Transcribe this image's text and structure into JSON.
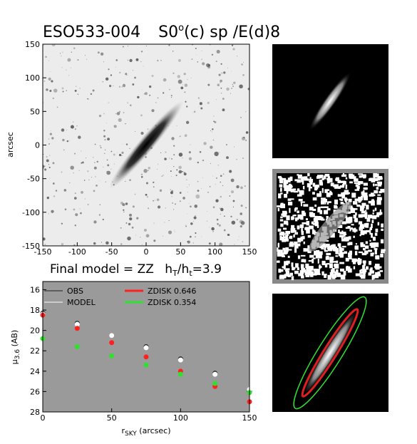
{
  "chart_data": [
    {
      "type": "image",
      "title": {
        "galaxy": "ESO533-004",
        "class": "S0",
        "class_sup": "o",
        "class_rest": "(c) sp  /E(d)8"
      },
      "y_label": "arcsec",
      "xlim": [
        -150,
        150
      ],
      "xticks": [
        -150,
        -100,
        -50,
        0,
        50,
        100,
        150
      ],
      "ylim": [
        -150,
        150
      ],
      "yticks": [
        -150,
        -100,
        -50,
        0,
        50,
        100,
        150
      ]
    },
    {
      "type": "scatter",
      "title": {
        "main": "Final model = ZZ",
        "h1": "h",
        "sub1": "T",
        "h2": "/h",
        "sub2": "t",
        "ratio": "=3.9"
      },
      "y_label": {
        "symbol": "μ",
        "sub": "3.6",
        "unit": " (AB)"
      },
      "x_label": {
        "symbol": "r",
        "sub": "SKY",
        "unit": " (arcsec)"
      },
      "xlim": [
        0,
        150
      ],
      "xticks": [
        0,
        50,
        100,
        150
      ],
      "ylim": [
        28,
        15.2
      ],
      "yticks": [
        16,
        18,
        20,
        22,
        24,
        26,
        28
      ],
      "x": [
        0,
        25,
        50,
        75,
        100,
        125,
        150
      ],
      "series": [
        {
          "name": "OBS",
          "color": "#222222",
          "values": [
            18.3,
            19.3,
            20.5,
            21.6,
            22.8,
            24.2,
            26.0
          ]
        },
        {
          "name": "MODEL",
          "color": "#ffffff",
          "values": [
            18.4,
            19.4,
            20.5,
            21.7,
            22.9,
            24.3,
            25.8
          ]
        },
        {
          "name": "ZDISK  0.646",
          "color": "#ff2020",
          "values": [
            18.5,
            19.8,
            21.2,
            22.6,
            24.0,
            25.5,
            27.0
          ]
        },
        {
          "name": "ZDISK  0.354",
          "color": "#30e030",
          "values": [
            20.8,
            21.6,
            22.5,
            23.4,
            24.3,
            25.2,
            26.1
          ]
        }
      ]
    }
  ]
}
